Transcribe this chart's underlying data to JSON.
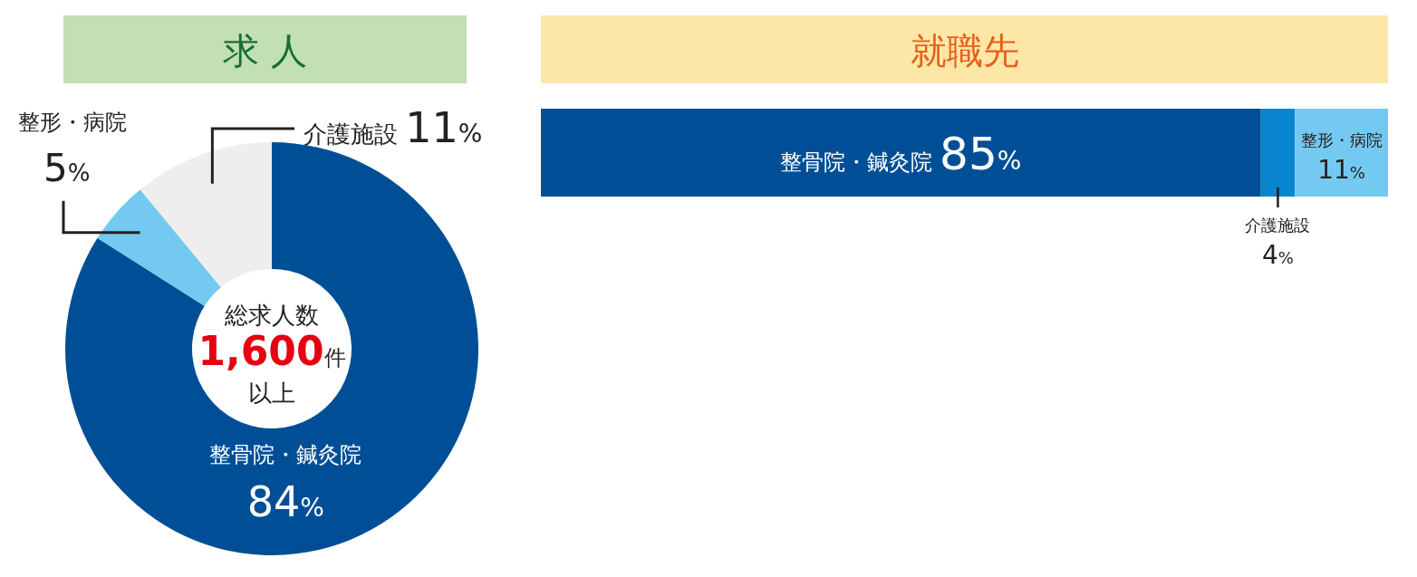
{
  "chart_data": [
    {
      "type": "donut",
      "title": "求 人",
      "categories": [
        "整骨院・鍼灸院",
        "整形・病院",
        "介護施設"
      ],
      "values": [
        84,
        5,
        11
      ],
      "colors": [
        "#004f96",
        "#74c9f0",
        "#eeeeee"
      ],
      "value_labels": [
        "84%",
        "5%",
        "11%"
      ],
      "annotations": [
        "総求人数",
        "1,600件",
        "以上"
      ]
    },
    {
      "type": "bar",
      "title": "就職先",
      "orientation": "horizontal",
      "stacked": true,
      "categories": [
        null
      ],
      "xlim": [
        0,
        100
      ],
      "tick_labels": false,
      "series": [
        {
          "name": "整骨院・鍼灸院",
          "color": "#004f96",
          "values": [
            85
          ],
          "value_labels": [
            "85%"
          ]
        },
        {
          "name": "介護施設",
          "color": "#0a85d0",
          "values": [
            4
          ],
          "value_labels": [
            "4%"
          ]
        },
        {
          "name": "整形・病院",
          "color": "#74c9f0",
          "values": [
            11
          ],
          "value_labels": [
            "11%"
          ]
        }
      ]
    }
  ]
}
